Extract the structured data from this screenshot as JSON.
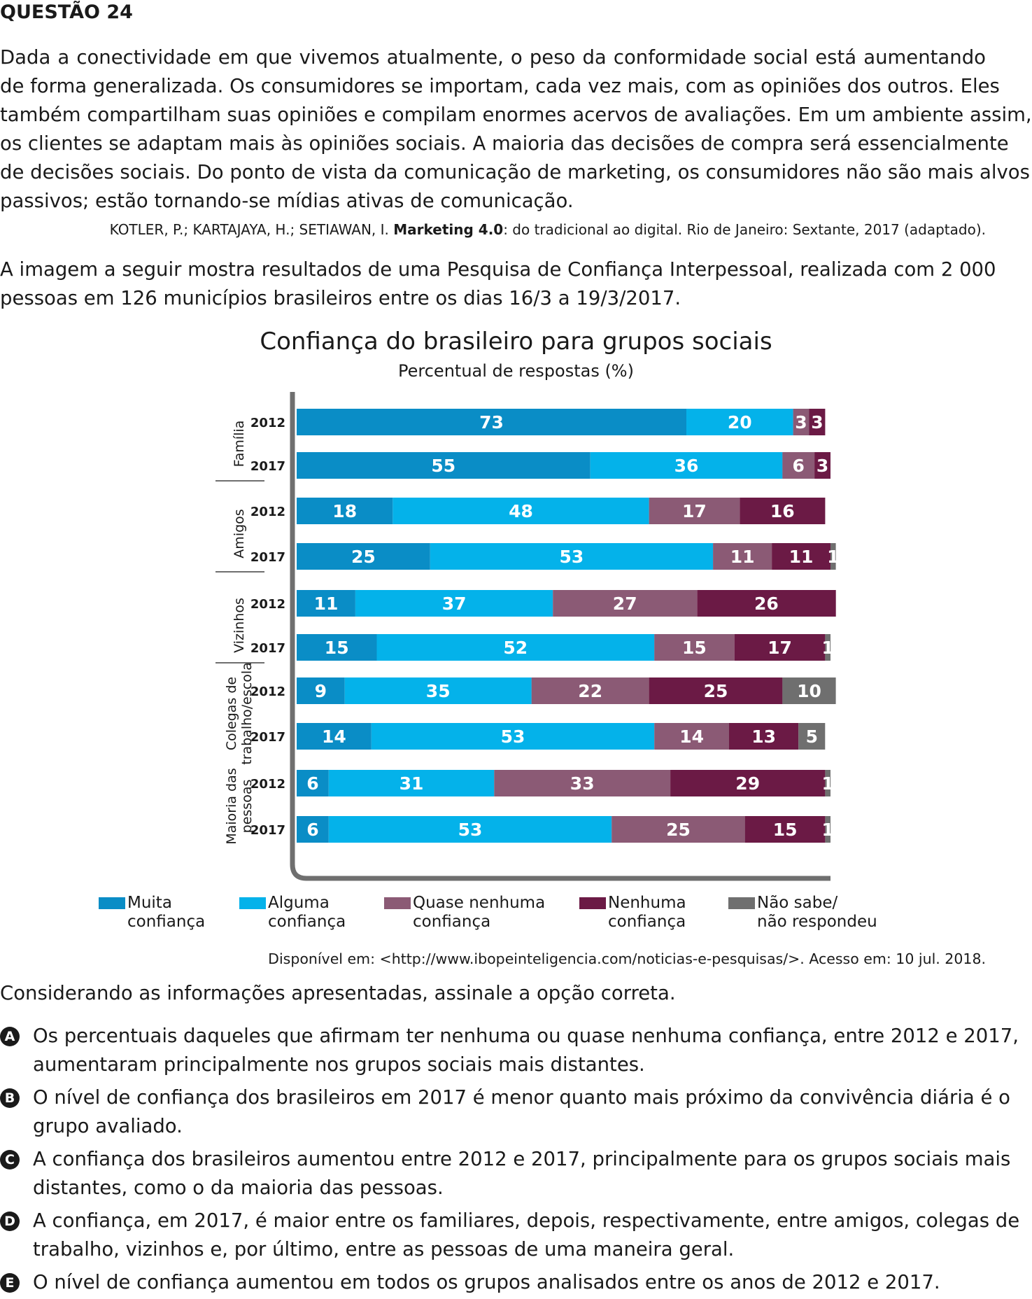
{
  "header": {
    "question_label": "QUESTÃO 24"
  },
  "intro_text": [
    "Dada a conectividade em que vivemos atualmente, o peso da conformidade social está aumentando",
    "de forma generalizada. Os consumidores se importam, cada vez mais, com as opiniões dos outros. Eles",
    "também compartilham suas opiniões e compilam enormes acervos de avaliações. Em um ambiente assim,",
    "os clientes se adaptam mais às opiniões sociais. A maioria das decisões de compra será essencialmente",
    "de decisões sociais. Do ponto de vista da comunicação de marketing, os consumidores não são mais alvos",
    "passivos; estão tornando-se mídias ativas de comunicação."
  ],
  "reference": {
    "authors": "KOTLER, P.; KARTAJAYA, H.; SETIAWAN, I. ",
    "book": "Marketing 4.0",
    "rest": ": do tradicional ao digital. Rio de Janeiro: Sextante, 2017 (adaptado)."
  },
  "context_text": [
    "A imagem a seguir mostra resultados de uma Pesquisa de Confiança Interpessoal, realizada com 2 000",
    "pessoas em 126 municípios brasileiros entre os dias 16/3 a 19/3/2017."
  ],
  "chart_data": {
    "type": "bar",
    "orientation": "horizontal",
    "stacked": true,
    "title": "Confiança do brasileiro para grupos sociais",
    "subtitle": "Percentual de respostas (%)",
    "groups": [
      "Família",
      "Amigos",
      "Vizinhos",
      "Colegas de trabalho/escola",
      "Maioria das pessoas"
    ],
    "group_label_lines": [
      [
        "Família"
      ],
      [
        "Amigos"
      ],
      [
        "Vizinhos"
      ],
      [
        "Colegas de",
        "trabalho/escola"
      ],
      [
        "Maioria das",
        "pessoas"
      ]
    ],
    "years": [
      "2012",
      "2017"
    ],
    "series": [
      {
        "name": "Muita confiança",
        "color": "#0a8dc6",
        "values": [
          73,
          55,
          18,
          25,
          11,
          15,
          9,
          14,
          6,
          6
        ]
      },
      {
        "name": "Alguma confiança",
        "color": "#04b2ea",
        "values": [
          20,
          36,
          48,
          53,
          37,
          52,
          35,
          53,
          31,
          53
        ]
      },
      {
        "name": "Quase nenhuma confiança",
        "color": "#8b5a75",
        "values": [
          3,
          6,
          17,
          11,
          27,
          15,
          22,
          14,
          33,
          25
        ]
      },
      {
        "name": "Nenhuma confiança",
        "color": "#6b1a45",
        "values": [
          3,
          3,
          16,
          11,
          26,
          17,
          25,
          13,
          29,
          15
        ]
      },
      {
        "name": "Não sabe/não respondeu",
        "color": "#6f6f6f",
        "values": [
          0,
          0,
          0,
          1,
          0,
          1,
          10,
          5,
          1,
          1
        ]
      }
    ],
    "xlim": [
      0,
      100
    ],
    "grid": false,
    "legend_position": "bottom"
  },
  "legend": [
    {
      "line1": "Muita",
      "line2": "confiança",
      "color": "#0a8dc6"
    },
    {
      "line1": "Alguma",
      "line2": "confiança",
      "color": "#04b2ea"
    },
    {
      "line1": "Quase nenhuma",
      "line2": "confiança",
      "color": "#8b5a75"
    },
    {
      "line1": "Nenhuma",
      "line2": "confiança",
      "color": "#6b1a45"
    },
    {
      "line1": "Não sabe/",
      "line2": "não respondeu",
      "color": "#6f6f6f"
    }
  ],
  "source": "Disponível em: <http://www.ibopeinteligencia.com/noticias-e-pesquisas/>. Acesso em: 10 jul. 2018.",
  "question": "Considerando as informações apresentadas, assinale a opção correta.",
  "options": [
    {
      "letter": "A",
      "lines": [
        "Os percentuais daqueles que afirmam ter nenhuma ou quase nenhuma confiança, entre 2012 e 2017,",
        "aumentaram principalmente nos grupos sociais mais distantes."
      ]
    },
    {
      "letter": "B",
      "lines": [
        "O nível de confiança dos brasileiros em 2017 é menor quanto mais próximo da convivência diária é o",
        "grupo avaliado."
      ]
    },
    {
      "letter": "C",
      "lines": [
        "A confiança dos brasileiros aumentou entre 2012 e 2017, principalmente para os grupos sociais mais",
        "distantes, como o da maioria das pessoas."
      ]
    },
    {
      "letter": "D",
      "lines": [
        "A confiança, em 2017, é maior entre os familiares, depois, respectivamente, entre amigos, colegas de",
        "trabalho, vizinhos e, por último, entre as pessoas de uma maneira geral."
      ]
    },
    {
      "letter": "E",
      "lines": [
        "O nível de confiança aumentou em todos os grupos analisados entre os anos de 2012 e 2017."
      ]
    }
  ]
}
